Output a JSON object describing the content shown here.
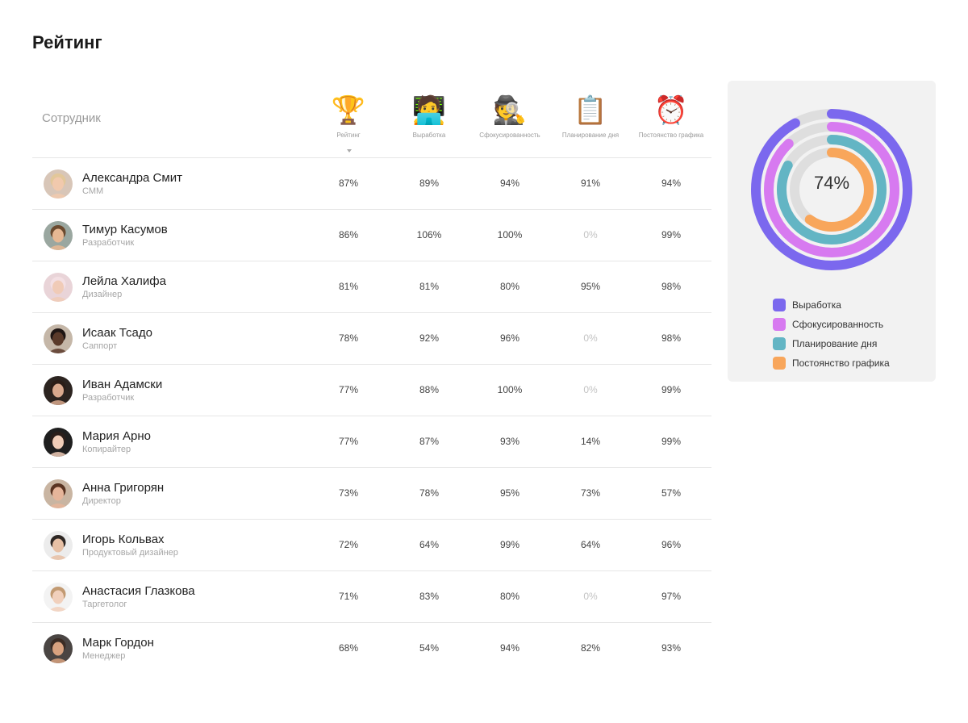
{
  "page_title": "Рейтинг",
  "table": {
    "employee_header": "Сотрудник",
    "columns": [
      {
        "icon": "trophy-icon",
        "glyph": "🏆",
        "label": "Рейтинг",
        "sorted": true
      },
      {
        "icon": "technologist-icon",
        "glyph": "🧑‍💻",
        "label": "Выработка"
      },
      {
        "icon": "detective-icon",
        "glyph": "🕵️",
        "label": "Сфокусированность"
      },
      {
        "icon": "clipboard-icon",
        "glyph": "📋",
        "label": "Планирование дня"
      },
      {
        "icon": "alarm-clock-icon",
        "glyph": "⏰",
        "label": "Постоянство графика"
      }
    ],
    "rows": [
      {
        "name": "Александра Смит",
        "role": "СММ",
        "values": [
          "87%",
          "89%",
          "94%",
          "91%",
          "94%"
        ]
      },
      {
        "name": "Тимур Касумов",
        "role": "Разработчик",
        "values": [
          "86%",
          "106%",
          "100%",
          "0%",
          "99%"
        ]
      },
      {
        "name": "Лейла Халифа",
        "role": "Дизайнер",
        "values": [
          "81%",
          "81%",
          "80%",
          "95%",
          "98%"
        ]
      },
      {
        "name": "Исаак Тсадо",
        "role": "Саппорт",
        "values": [
          "78%",
          "92%",
          "96%",
          "0%",
          "98%"
        ]
      },
      {
        "name": "Иван Адамски",
        "role": "Разработчик",
        "values": [
          "77%",
          "88%",
          "100%",
          "0%",
          "99%"
        ]
      },
      {
        "name": "Мария Арно",
        "role": "Копирайтер",
        "values": [
          "77%",
          "87%",
          "93%",
          "14%",
          "99%"
        ]
      },
      {
        "name": "Анна Григорян",
        "role": "Директор",
        "values": [
          "73%",
          "78%",
          "95%",
          "73%",
          "57%"
        ]
      },
      {
        "name": "Игорь Кольвах",
        "role": "Продуктовый дизайнер",
        "values": [
          "72%",
          "64%",
          "99%",
          "64%",
          "96%"
        ]
      },
      {
        "name": "Анастасия Глазкова",
        "role": "Таргетолог",
        "values": [
          "71%",
          "83%",
          "80%",
          "0%",
          "97%"
        ]
      },
      {
        "name": "Марк Гордон",
        "role": "Менеджер",
        "values": [
          "68%",
          "54%",
          "94%",
          "82%",
          "93%"
        ]
      }
    ]
  },
  "chart_data": {
    "type": "radial_bar",
    "center_label": "74%",
    "series": [
      {
        "name": "Выработка",
        "value": 0.92,
        "color": "#7B68EE"
      },
      {
        "name": "Сфокусированность",
        "value": 0.88,
        "color": "#D77AF0"
      },
      {
        "name": "Планирование дня",
        "value": 0.83,
        "color": "#63B5C4"
      },
      {
        "name": "Постоянство графика",
        "value": 0.6,
        "color": "#F8A65B"
      }
    ],
    "track_color": "#dedede"
  },
  "avatar_colors": [
    {
      "skin": "#f1c9ad",
      "hair": "#e2c79a",
      "bg": "#d8c6b8"
    },
    {
      "skin": "#e7b893",
      "hair": "#6b4a2f",
      "bg": "#9aa7a0"
    },
    {
      "skin": "#f0cbb7",
      "hair": "#f3dfe3",
      "bg": "#e9d4d8"
    },
    {
      "skin": "#5a3a2a",
      "hair": "#1f1614",
      "bg": "#c5b7a8"
    },
    {
      "skin": "#d9a98e",
      "hair": "#2b1d17",
      "bg": "#2c2420"
    },
    {
      "skin": "#f0cdb8",
      "hair": "#2a1e1a",
      "bg": "#1f1f1f"
    },
    {
      "skin": "#e6b59a",
      "hair": "#5a3422",
      "bg": "#c9b5a2"
    },
    {
      "skin": "#e7c0a5",
      "hair": "#2e2724",
      "bg": "#ececec"
    },
    {
      "skin": "#f1d0bc",
      "hair": "#c29a72",
      "bg": "#f3f3f3"
    },
    {
      "skin": "#d8a27f",
      "hair": "#3b2c24",
      "bg": "#4a4543"
    }
  ]
}
